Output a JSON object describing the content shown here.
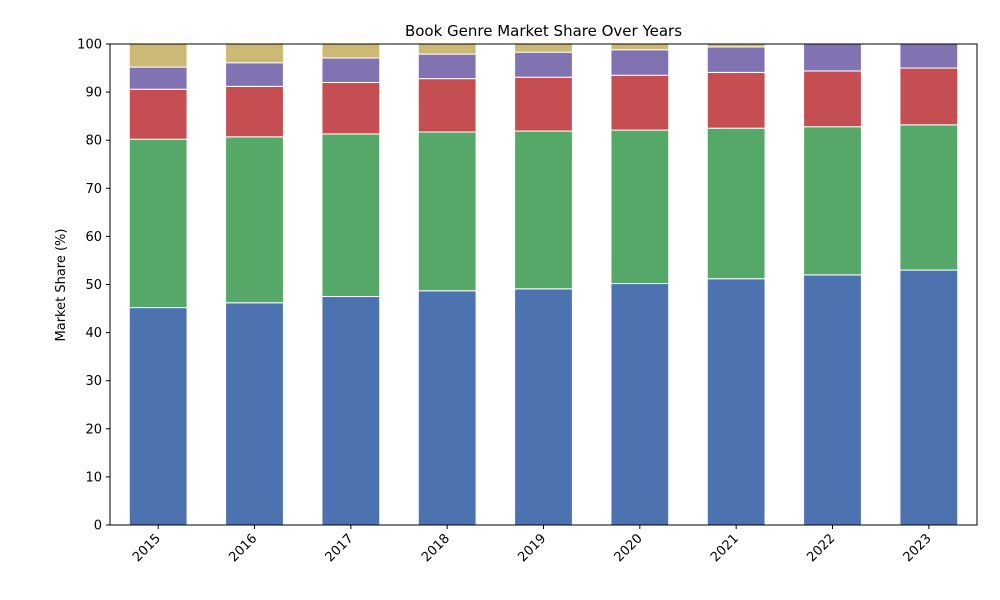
{
  "chart_data": {
    "type": "bar",
    "stacked": true,
    "title": "Book Genre Market Share Over Years",
    "xlabel": "",
    "ylabel": "Market Share (%)",
    "ylim": [
      0,
      100
    ],
    "yticks": [
      0,
      10,
      20,
      30,
      40,
      50,
      60,
      70,
      80,
      90,
      100
    ],
    "categories": [
      "2015",
      "2016",
      "2017",
      "2018",
      "2019",
      "2020",
      "2021",
      "2022",
      "2023"
    ],
    "grid": false,
    "series": [
      {
        "color": "#4c72b0",
        "values": [
          45.2,
          46.2,
          47.5,
          48.7,
          49.1,
          50.2,
          51.2,
          52.0,
          53.0
        ]
      },
      {
        "color": "#55a868",
        "values": [
          35.0,
          34.5,
          33.8,
          33.0,
          32.8,
          31.9,
          31.3,
          30.8,
          30.2
        ]
      },
      {
        "color": "#c44e52",
        "values": [
          10.4,
          10.5,
          10.7,
          11.1,
          11.2,
          11.4,
          11.6,
          11.6,
          11.8
        ]
      },
      {
        "color": "#8172b2",
        "values": [
          4.6,
          4.9,
          5.1,
          5.1,
          5.2,
          5.3,
          5.3,
          5.6,
          5.0
        ]
      },
      {
        "color": "#ccb974",
        "values": [
          4.8,
          3.9,
          2.9,
          2.1,
          1.7,
          1.2,
          0.6,
          0.0,
          0.0
        ]
      }
    ]
  }
}
